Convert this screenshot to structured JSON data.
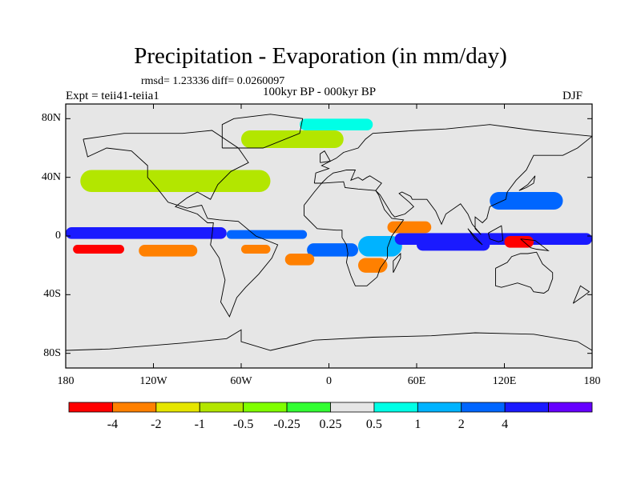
{
  "title": "Precipitation - Evaporation (in mm/day)",
  "stats": "rmsd= 1.23336 diff= 0.0260097",
  "expt": "Expt = teii41-teiia1",
  "period": "100kyr BP - 000kyr BP",
  "season": "DJF",
  "map": {
    "projection": "cylindrical equidistant",
    "lon_range": [
      -180,
      180
    ],
    "lat_range": [
      -90,
      90
    ],
    "background": "#e6e6e6",
    "x_ticks": [
      {
        "lon": -180,
        "label": "180"
      },
      {
        "lon": -120,
        "label": "120W"
      },
      {
        "lon": -60,
        "label": "60W"
      },
      {
        "lon": 0,
        "label": "0"
      },
      {
        "lon": 60,
        "label": "60E"
      },
      {
        "lon": 120,
        "label": "120E"
      },
      {
        "lon": 180,
        "label": "180"
      }
    ],
    "y_ticks": [
      {
        "lat": 80,
        "label": "80N"
      },
      {
        "lat": 40,
        "label": "40N"
      },
      {
        "lat": 0,
        "label": "0"
      },
      {
        "lat": -40,
        "label": "40S"
      },
      {
        "lat": -80,
        "label": "80S"
      }
    ]
  },
  "colorbar": {
    "colors": [
      "#ff0000",
      "#ff8000",
      "#e6e600",
      "#b3e600",
      "#80ff00",
      "#33ff33",
      "#e6e6e6",
      "#00ffe6",
      "#00b3ff",
      "#0066ff",
      "#1a1aff",
      "#6600ff"
    ],
    "labels": [
      "-4",
      "-2",
      "-1",
      "-0.5",
      "-0.25",
      "0.25",
      "0.5",
      "1",
      "2",
      "4"
    ]
  },
  "chart_data": {
    "type": "heatmap",
    "title": "Precipitation - Evaporation (in mm/day)",
    "xlabel": "",
    "ylabel": "",
    "x_range": [
      -180,
      180
    ],
    "y_range": [
      -90,
      90
    ],
    "levels": [
      -4,
      -2,
      -1,
      -0.5,
      -0.25,
      0.25,
      0.5,
      1,
      2,
      4
    ],
    "regions": [
      {
        "lon": [
          -180,
          -70
        ],
        "lat": [
          -2,
          6
        ],
        "level": 4
      },
      {
        "lon": [
          -70,
          -15
        ],
        "lat": [
          -2,
          4
        ],
        "level": 2
      },
      {
        "lon": [
          -15,
          20
        ],
        "lat": [
          -14,
          -5
        ],
        "level": 2
      },
      {
        "lon": [
          20,
          50
        ],
        "lat": [
          -14,
          0
        ],
        "level": 1
      },
      {
        "lon": [
          45,
          180
        ],
        "lat": [
          -6,
          2
        ],
        "level": 4
      },
      {
        "lon": [
          60,
          110
        ],
        "lat": [
          -10,
          -2
        ],
        "level": 4
      },
      {
        "lon": [
          110,
          160
        ],
        "lat": [
          18,
          30
        ],
        "level": 2
      },
      {
        "lon": [
          -175,
          -140
        ],
        "lat": [
          -12,
          -6
        ],
        "level": -4
      },
      {
        "lon": [
          -130,
          -90
        ],
        "lat": [
          -14,
          -6
        ],
        "level": -2
      },
      {
        "lon": [
          -60,
          -40
        ],
        "lat": [
          -12,
          -6
        ],
        "level": -2
      },
      {
        "lon": [
          40,
          70
        ],
        "lat": [
          2,
          10
        ],
        "level": -2
      },
      {
        "lon": [
          20,
          40
        ],
        "lat": [
          -25,
          -15
        ],
        "level": -2
      },
      {
        "lon": [
          -30,
          -10
        ],
        "lat": [
          -20,
          -12
        ],
        "level": -2
      },
      {
        "lon": [
          120,
          140
        ],
        "lat": [
          -8,
          0
        ],
        "level": -4
      },
      {
        "lon": [
          -170,
          -40
        ],
        "lat": [
          30,
          45
        ],
        "level": -0.5
      },
      {
        "lon": [
          -60,
          10
        ],
        "lat": [
          60,
          72
        ],
        "level": -0.5
      },
      {
        "lon": [
          -20,
          30
        ],
        "lat": [
          72,
          80
        ],
        "level": 0.5
      }
    ]
  }
}
